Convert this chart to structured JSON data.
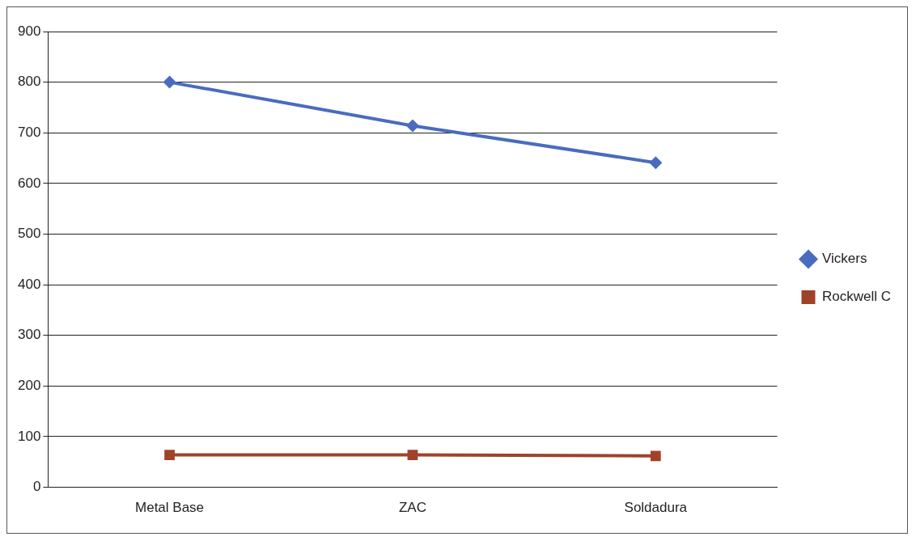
{
  "chart_data": {
    "type": "line",
    "categories": [
      "Metal Base",
      "ZAC",
      "Soldadura"
    ],
    "series": [
      {
        "name": "Vickers",
        "color": "#4a6bbf",
        "marker": "diamond",
        "values": [
          800,
          714,
          641
        ]
      },
      {
        "name": "Rockwell C",
        "color": "#a0422a",
        "marker": "square",
        "values": [
          64,
          64,
          62
        ]
      }
    ],
    "ylim": [
      0,
      900
    ],
    "yticks": [
      0,
      100,
      200,
      300,
      400,
      500,
      600,
      700,
      800,
      900
    ],
    "grid": "y",
    "legend": "right",
    "line_style": "solid"
  }
}
